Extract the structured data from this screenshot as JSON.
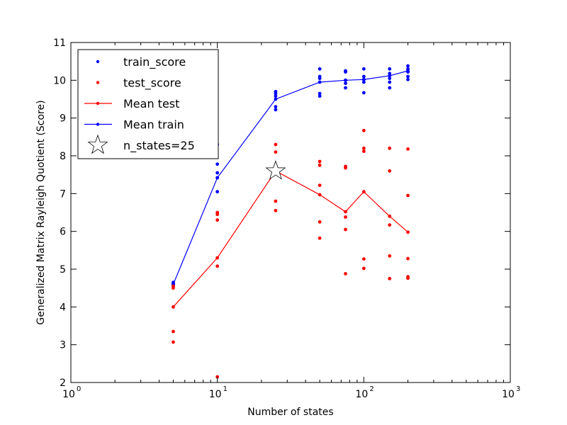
{
  "chart_data": {
    "type": "scatter",
    "title": "",
    "xlabel": "Number of states",
    "ylabel": "Generalized Matrix Rayleigh Quotient (Score)",
    "xscale": "log",
    "xlim": [
      1,
      1000
    ],
    "ylim": [
      2,
      11
    ],
    "x_ticks": [
      1,
      10,
      100,
      1000
    ],
    "x_tick_labels": [
      {
        "base": "10",
        "exp": "0"
      },
      {
        "base": "10",
        "exp": "1"
      },
      {
        "base": "10",
        "exp": "2"
      },
      {
        "base": "10",
        "exp": "3"
      }
    ],
    "y_ticks": [
      2,
      3,
      4,
      5,
      6,
      7,
      8,
      9,
      10,
      11
    ],
    "y_tick_labels": [
      "2",
      "3",
      "4",
      "5",
      "6",
      "7",
      "8",
      "9",
      "10",
      "11"
    ],
    "grid": false,
    "legend_position": "upper left",
    "series": [
      {
        "name": "train_score",
        "kind": "points",
        "color": "#0000ff",
        "points": [
          [
            5,
            4.65
          ],
          [
            5,
            4.62
          ],
          [
            5,
            4.6
          ],
          [
            5,
            4.58
          ],
          [
            5,
            4.55
          ],
          [
            10,
            7.78
          ],
          [
            10,
            7.55
          ],
          [
            10,
            7.42
          ],
          [
            10,
            7.05
          ],
          [
            10,
            8.3
          ],
          [
            25,
            9.7
          ],
          [
            25,
            9.65
          ],
          [
            25,
            9.58
          ],
          [
            25,
            9.3
          ],
          [
            25,
            9.22
          ],
          [
            50,
            10.3
          ],
          [
            50,
            10.1
          ],
          [
            50,
            10.05
          ],
          [
            50,
            9.65
          ],
          [
            50,
            9.58
          ],
          [
            75,
            10.25
          ],
          [
            75,
            10.22
          ],
          [
            75,
            10.0
          ],
          [
            75,
            9.92
          ],
          [
            75,
            9.8
          ],
          [
            100,
            10.3
          ],
          [
            100,
            10.1
          ],
          [
            100,
            10.02
          ],
          [
            100,
            9.95
          ],
          [
            100,
            9.67
          ],
          [
            150,
            10.3
          ],
          [
            150,
            10.18
          ],
          [
            150,
            10.05
          ],
          [
            150,
            9.95
          ],
          [
            150,
            9.8
          ],
          [
            200,
            10.38
          ],
          [
            200,
            10.3
          ],
          [
            200,
            10.22
          ],
          [
            200,
            10.1
          ],
          [
            200,
            10.02
          ]
        ]
      },
      {
        "name": "test_score",
        "kind": "points",
        "color": "#ff0000",
        "points": [
          [
            5,
            4.55
          ],
          [
            5,
            4.5
          ],
          [
            5,
            3.35
          ],
          [
            5,
            3.07
          ],
          [
            10,
            6.5
          ],
          [
            10,
            6.45
          ],
          [
            10,
            6.3
          ],
          [
            10,
            5.08
          ],
          [
            10,
            2.15
          ],
          [
            25,
            8.3
          ],
          [
            25,
            8.1
          ],
          [
            25,
            6.8
          ],
          [
            25,
            6.55
          ],
          [
            50,
            7.85
          ],
          [
            50,
            7.75
          ],
          [
            50,
            7.22
          ],
          [
            50,
            6.25
          ],
          [
            50,
            5.82
          ],
          [
            75,
            7.72
          ],
          [
            75,
            7.68
          ],
          [
            75,
            6.38
          ],
          [
            75,
            6.05
          ],
          [
            75,
            4.88
          ],
          [
            100,
            8.67
          ],
          [
            100,
            8.2
          ],
          [
            100,
            8.12
          ],
          [
            100,
            5.27
          ],
          [
            100,
            5.02
          ],
          [
            150,
            8.2
          ],
          [
            150,
            7.6
          ],
          [
            150,
            6.17
          ],
          [
            150,
            5.35
          ],
          [
            150,
            4.75
          ],
          [
            200,
            8.18
          ],
          [
            200,
            6.95
          ],
          [
            200,
            5.28
          ],
          [
            200,
            4.8
          ],
          [
            200,
            4.76
          ]
        ]
      },
      {
        "name": "Mean test",
        "kind": "line",
        "color": "#ff0000",
        "points": [
          [
            5,
            4.0
          ],
          [
            10,
            5.3
          ],
          [
            25,
            7.6
          ],
          [
            50,
            6.97
          ],
          [
            75,
            6.52
          ],
          [
            100,
            7.05
          ],
          [
            150,
            6.4
          ],
          [
            200,
            5.98
          ]
        ]
      },
      {
        "name": "Mean train",
        "kind": "line",
        "color": "#0000ff",
        "points": [
          [
            5,
            4.6
          ],
          [
            10,
            7.42
          ],
          [
            25,
            9.5
          ],
          [
            50,
            9.95
          ],
          [
            75,
            10.0
          ],
          [
            100,
            10.02
          ],
          [
            150,
            10.12
          ],
          [
            200,
            10.25
          ]
        ]
      },
      {
        "name": "n_states=25",
        "kind": "marker",
        "marker": "star",
        "color": "#ffffff",
        "points": [
          [
            25,
            7.6
          ]
        ]
      }
    ]
  }
}
